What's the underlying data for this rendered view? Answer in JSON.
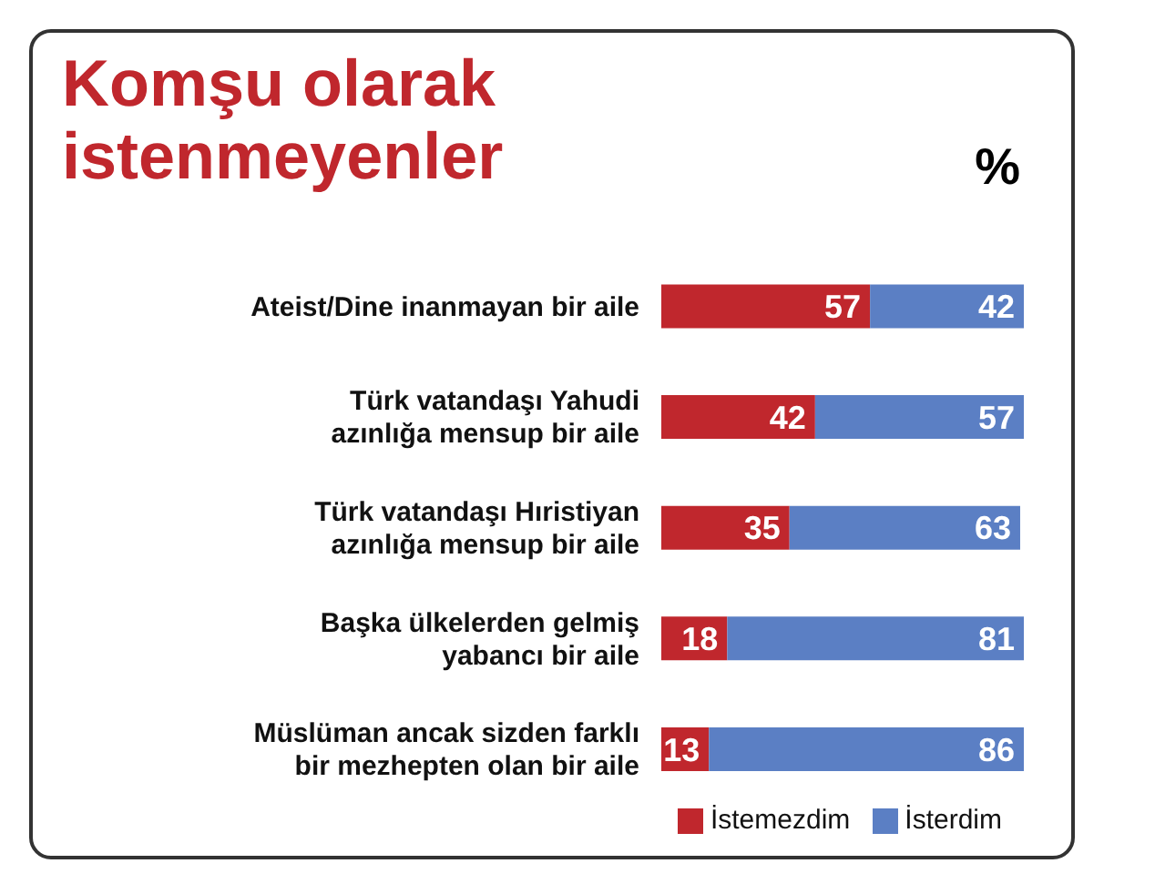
{
  "chart_data": {
    "type": "bar",
    "orientation": "horizontal",
    "stacked": true,
    "title": "Komşu olarak istenmeyenler",
    "annotations": [
      "%"
    ],
    "categories": [
      "Ateist/Dine inanmayan bir aile",
      "Türk vatandaşı Yahudi azınlığa mensup bir aile",
      "Türk vatandaşı Hıristiyan azınlığa mensup bir aile",
      "Başka ülkelerden gelmiş yabancı bir aile",
      "Müslüman ancak sizden farklı bir mezhepten olan bir aile"
    ],
    "series": [
      {
        "name": "İstemezdim",
        "color": "#c0272d",
        "values": [
          57,
          42,
          35,
          18,
          13
        ]
      },
      {
        "name": "İsterdim",
        "color": "#5b7fc4",
        "values": [
          42,
          57,
          63,
          81,
          86
        ]
      }
    ],
    "data_labels": true,
    "grid": false,
    "legend": "bottom right"
  }
}
